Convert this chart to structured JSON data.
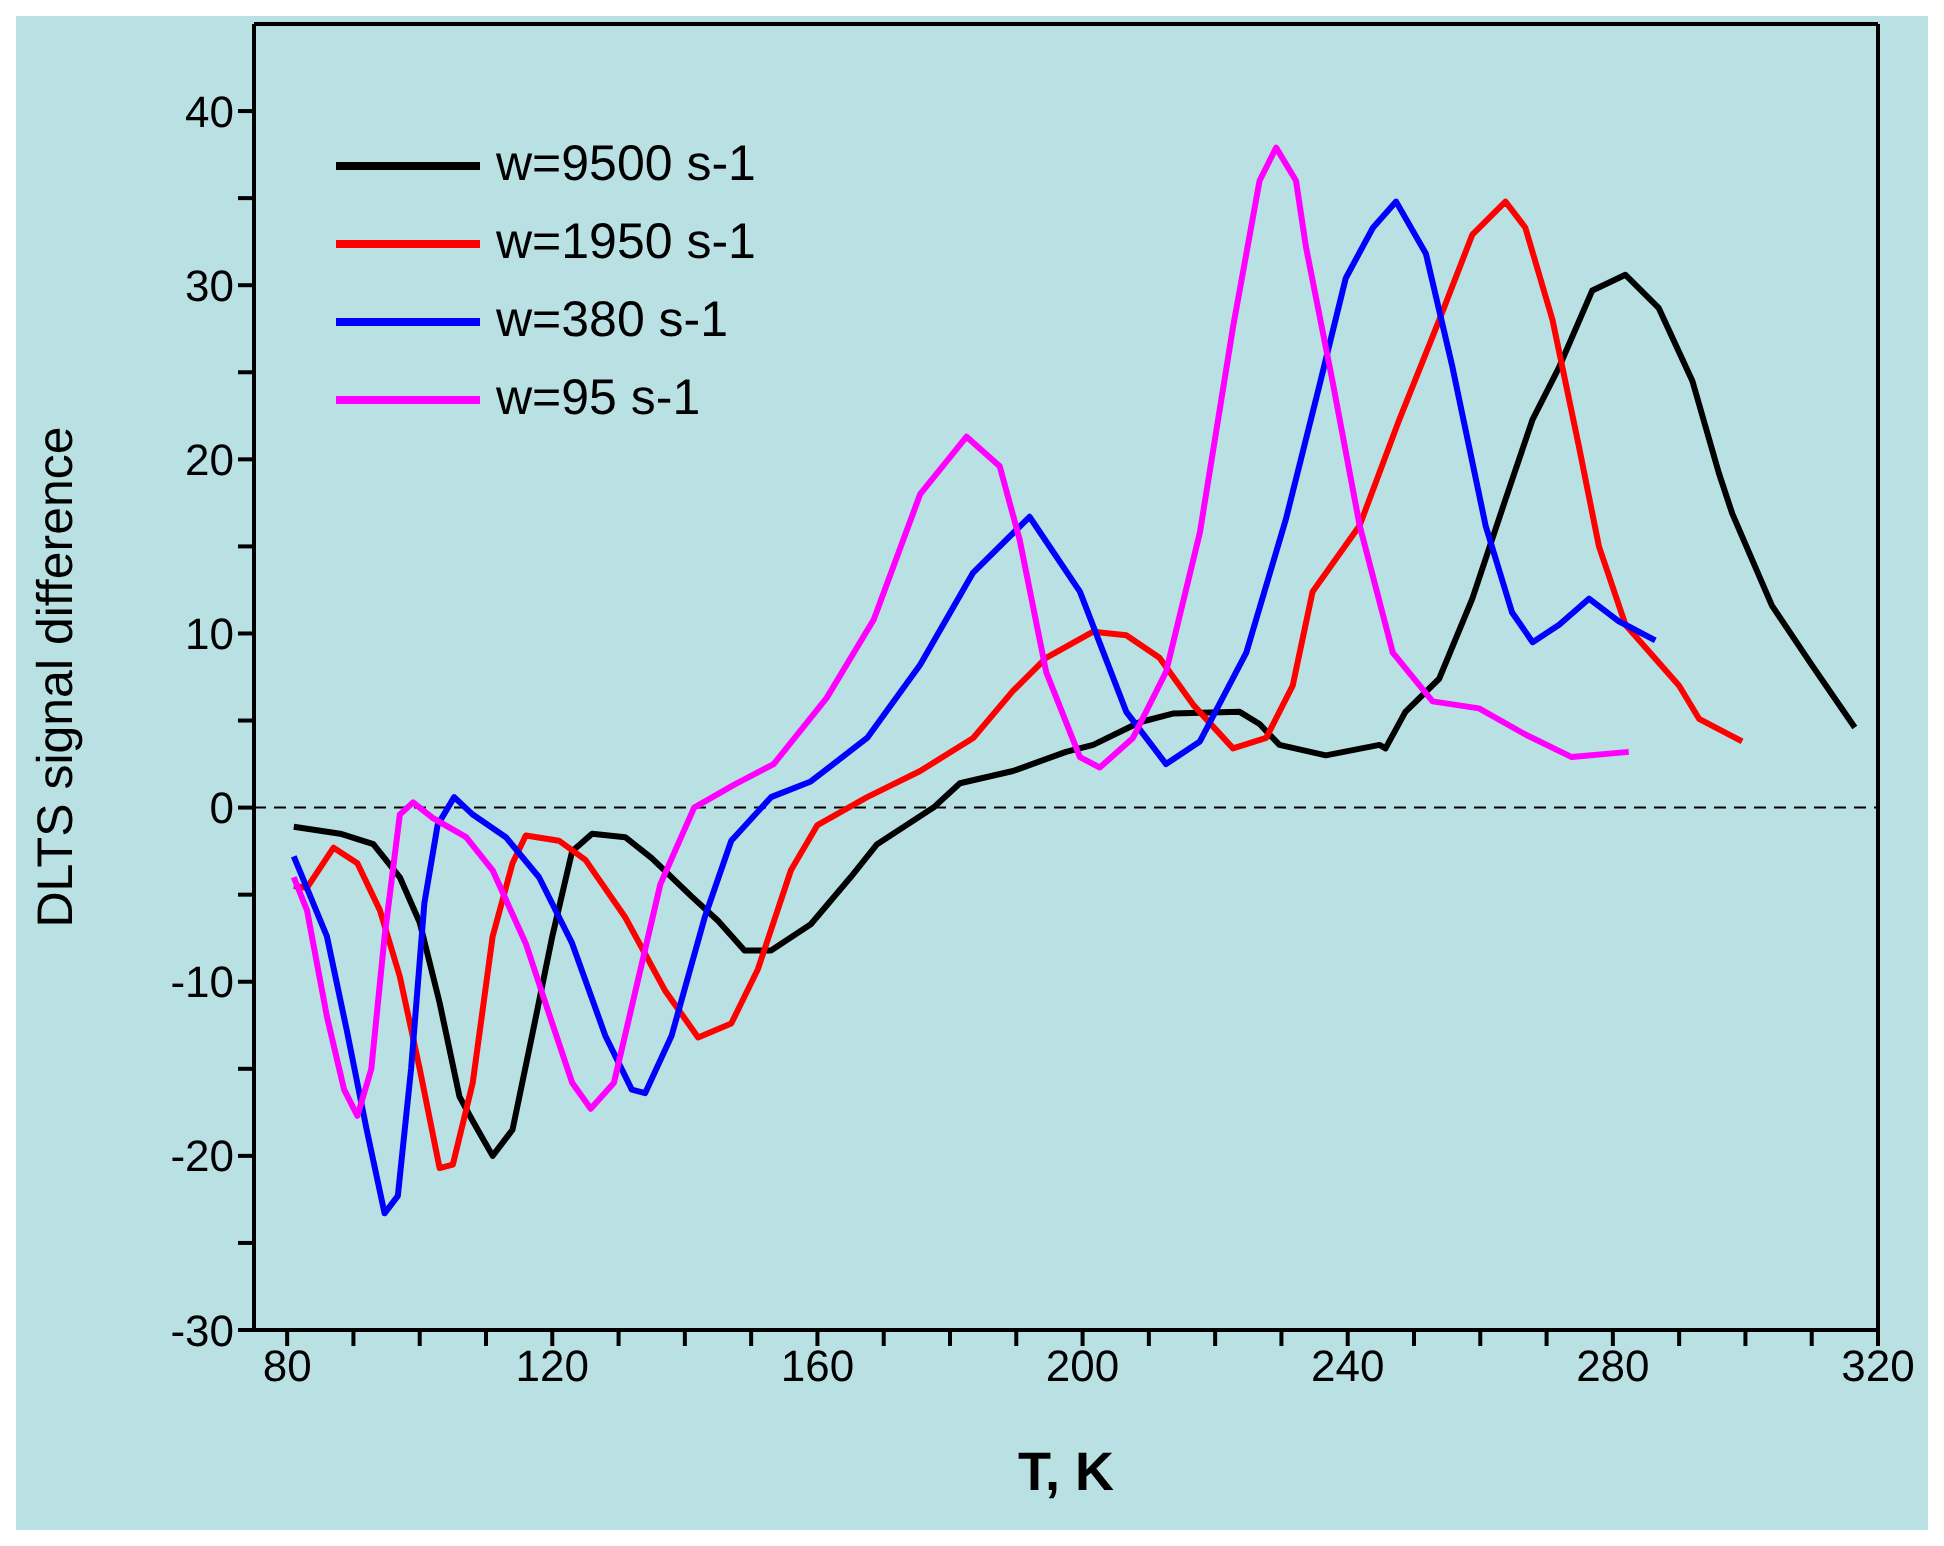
{
  "chart_data": {
    "type": "line",
    "xlabel": "T, K",
    "ylabel": "DLTS signal difference",
    "xlim": [
      75,
      320
    ],
    "ylim": [
      -30,
      45
    ],
    "xticks": [
      80,
      {
        "value": 90,
        "label": null
      },
      {
        "value": 100,
        "label": null
      },
      {
        "value": 110,
        "label": null
      },
      120,
      {
        "value": 130,
        "label": null
      },
      {
        "value": 140,
        "label": null
      },
      {
        "value": 150,
        "label": null
      },
      160,
      {
        "value": 170,
        "label": null
      },
      {
        "value": 180,
        "label": null
      },
      {
        "value": 190,
        "label": null
      },
      200,
      {
        "value": 210,
        "label": null
      },
      {
        "value": 220,
        "label": null
      },
      {
        "value": 230,
        "label": null
      },
      240,
      {
        "value": 250,
        "label": null
      },
      {
        "value": 260,
        "label": null
      },
      {
        "value": 270,
        "label": null
      },
      280,
      {
        "value": 290,
        "label": null
      },
      {
        "value": 300,
        "label": null
      },
      {
        "value": 310,
        "label": null
      },
      320
    ],
    "yticks": [
      -30,
      {
        "value": -25,
        "label": null
      },
      -20,
      {
        "value": -15,
        "label": null
      },
      -10,
      {
        "value": -5,
        "label": null
      },
      0,
      {
        "value": 5,
        "label": null
      },
      10,
      {
        "value": 15,
        "label": null
      },
      20,
      {
        "value": 25,
        "label": null
      },
      30,
      {
        "value": 35,
        "label": null
      },
      40
    ],
    "legend": "top left",
    "marker": "none",
    "line_style": "solid",
    "ref_lines": [
      {
        "axis": "y",
        "value": 0,
        "label": null,
        "color": "#000000",
        "line_style": "dashed"
      }
    ],
    "series": [
      {
        "name": "w=9500 s-1",
        "color": "#000000",
        "x": [
          81,
          88,
          93,
          97,
          100,
          103,
          106,
          108,
          111,
          114,
          117,
          120,
          123,
          126,
          131,
          135,
          141,
          145,
          149,
          153,
          159,
          165,
          169,
          177.5,
          181.5,
          189.5,
          197.5,
          201.6,
          208.6,
          213.6,
          223.7,
          226.7,
          229.7,
          236.7,
          244.8,
          245.7,
          248.7,
          253.8,
          258.8,
          263.8,
          267.9,
          271.9,
          276.9,
          281.9,
          286.9,
          292,
          296,
          298,
          304,
          310,
          316.5
        ],
        "values": [
          -1.1,
          -1.5,
          -2.1,
          -4,
          -6.6,
          -11.2,
          -16.6,
          -18,
          -20,
          -18.5,
          -13,
          -7.4,
          -2.5,
          -1.5,
          -1.7,
          -2.9,
          -5.1,
          -6.5,
          -8.2,
          -8.2,
          -6.7,
          -4,
          -2.1,
          0,
          1.4,
          2.1,
          3.2,
          3.6,
          4.9,
          5.4,
          5.5,
          4.8,
          3.6,
          3,
          3.6,
          3.4,
          5.5,
          7.4,
          12,
          17.7,
          22.3,
          25.3,
          29.7,
          30.6,
          28.7,
          24.5,
          19.2,
          16.9,
          11.6,
          8.2,
          4.6
        ]
      },
      {
        "name": "w=1950 s-1",
        "color": "#ff0000",
        "x": [
          81,
          83,
          87,
          90.6,
          94,
          97,
          100,
          103,
          105,
          108,
          111,
          114,
          116,
          121,
          125,
          131,
          137,
          142,
          147,
          151,
          156,
          160,
          167.5,
          175.5,
          183.5,
          189.5,
          194.5,
          201.6,
          206.6,
          211.6,
          216.7,
          222.7,
          227.7,
          231.7,
          234.7,
          241.8,
          247.8,
          253.8,
          258.8,
          263.8,
          266.8,
          270.9,
          274.9,
          277.9,
          281.9,
          290,
          293,
          299.5
        ],
        "values": [
          -4.5,
          -4.6,
          -2.3,
          -3.2,
          -5.9,
          -9.7,
          -15,
          -20.7,
          -20.5,
          -15.8,
          -7.4,
          -3.2,
          -1.6,
          -1.9,
          -3,
          -6.3,
          -10.5,
          -13.2,
          -12.4,
          -9.3,
          -3.6,
          -1,
          0.6,
          2.1,
          4,
          6.7,
          8.6,
          10.1,
          9.9,
          8.6,
          5.9,
          3.4,
          4,
          7,
          12.4,
          16.2,
          22.3,
          28,
          32.9,
          34.8,
          33.3,
          28,
          20.7,
          15,
          10.5,
          7,
          5.1,
          3.8
        ]
      },
      {
        "name": "w=380 s-1",
        "color": "#0000ff",
        "x": [
          81,
          86,
          89,
          92,
          94.7,
          96.7,
          98.7,
          100.7,
          102.7,
          105.2,
          108,
          113,
          118,
          123,
          128,
          132,
          134,
          138,
          143,
          147,
          153,
          159,
          167.5,
          175.5,
          183.5,
          192,
          199.6,
          206.6,
          212.6,
          217.7,
          224.7,
          230.7,
          235.7,
          239.7,
          243.8,
          247.3,
          251.8,
          255.8,
          260.8,
          264.8,
          267.9,
          271.9,
          276.4,
          280.9,
          286.4
        ],
        "values": [
          -2.8,
          -7.4,
          -12.8,
          -18.5,
          -23.3,
          -22.3,
          -15,
          -5.5,
          -1,
          0.6,
          -0.4,
          -1.7,
          -4,
          -7.8,
          -13.1,
          -16.2,
          -16.4,
          -13.1,
          -6.3,
          -1.9,
          0.6,
          1.5,
          4,
          8.2,
          13.5,
          16.7,
          12.4,
          5.5,
          2.5,
          3.8,
          8.9,
          16.6,
          24.2,
          30.4,
          33.3,
          34.8,
          31.8,
          25.3,
          16.2,
          11.2,
          9.5,
          10.5,
          12,
          10.7,
          9.6
        ]
      },
      {
        "name": "w=95 s-1",
        "color": "#ff00ff",
        "x": [
          81,
          83,
          86,
          88.6,
          90.6,
          92.7,
          94.7,
          97,
          99,
          102,
          107,
          111,
          116,
          120,
          123,
          125.8,
          129.3,
          133.3,
          136.3,
          141.4,
          147.4,
          153.4,
          161.4,
          168.5,
          175.5,
          182.5,
          187.5,
          190.5,
          194.5,
          199.6,
          202.6,
          207.6,
          212.6,
          217.7,
          222.7,
          226.7,
          229.2,
          232.2,
          233.7,
          237.7,
          241.8,
          246.8,
          252.8,
          259.8,
          266.8,
          273.8,
          282.4
        ],
        "values": [
          -4,
          -5.9,
          -12,
          -16.2,
          -17.7,
          -15,
          -7.4,
          -0.4,
          0.3,
          -0.6,
          -1.7,
          -3.6,
          -7.8,
          -12.4,
          -15.8,
          -17.3,
          -15.8,
          -9.3,
          -4.4,
          0,
          1.3,
          2.5,
          6.3,
          10.8,
          18,
          21.3,
          19.6,
          15.4,
          7.8,
          2.9,
          2.3,
          4,
          7.8,
          15.8,
          27.6,
          36,
          37.9,
          36,
          32.2,
          24.5,
          16.2,
          8.9,
          6.1,
          5.7,
          4.2,
          2.9,
          3.2
        ]
      }
    ]
  }
}
